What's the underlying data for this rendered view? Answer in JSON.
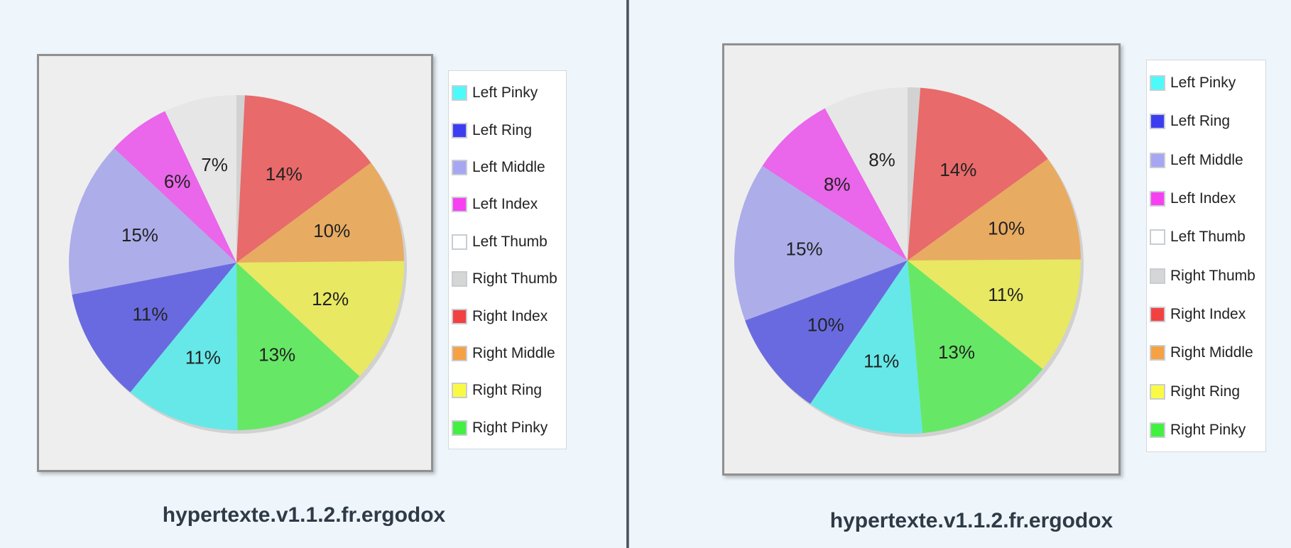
{
  "legend_entries": [
    {
      "label": "Left Pinky",
      "color": "#4dfafa"
    },
    {
      "label": "Left Ring",
      "color": "#3d3df0"
    },
    {
      "label": "Left Middle",
      "color": "#a6a6f2"
    },
    {
      "label": "Left Index",
      "color": "#f740f2"
    },
    {
      "label": "Left Thumb",
      "color": "#ffffff"
    },
    {
      "label": "Right Thumb",
      "color": "#d6d6d6"
    },
    {
      "label": "Right Index",
      "color": "#f24141"
    },
    {
      "label": "Right Middle",
      "color": "#f5a144"
    },
    {
      "label": "Right Ring",
      "color": "#fafa44"
    },
    {
      "label": "Right Pinky",
      "color": "#42f042"
    }
  ],
  "chart_data": [
    {
      "type": "pie",
      "title": "hypertexte.v1.1.2.fr.ergodox",
      "categories": [
        "Right Thumb",
        "Right Index",
        "Right Middle",
        "Right Ring",
        "Right Pinky",
        "Left Pinky",
        "Left Ring",
        "Left Middle",
        "Left Index",
        "Left Thumb"
      ],
      "values": [
        0.8,
        14,
        10,
        12,
        13,
        11,
        11,
        15,
        6,
        7
      ],
      "labels": [
        "",
        "14%",
        "10%",
        "12%",
        "13%",
        "11%",
        "11%",
        "15%",
        "6%",
        "7%"
      ],
      "colors": [
        "#d2d2d2",
        "#e86a6a",
        "#e8ab62",
        "#e8e862",
        "#66e866",
        "#66e8e8",
        "#6a6ae0",
        "#adadea",
        "#ea66ea",
        "#e6e6e6"
      ],
      "legend_placement": "right"
    },
    {
      "type": "pie",
      "title": "hypertexte.v1.1.2.fr.ergodox",
      "categories": [
        "Right Thumb",
        "Right Index",
        "Right Middle",
        "Right Ring",
        "Right Pinky",
        "Left Pinky",
        "Left Ring",
        "Left Middle",
        "Left Index",
        "Left Thumb"
      ],
      "values": [
        1.2,
        14,
        10,
        11,
        13,
        11,
        10,
        15,
        8,
        8
      ],
      "labels": [
        "",
        "14%",
        "10%",
        "11%",
        "13%",
        "11%",
        "10%",
        "15%",
        "8%",
        "8%"
      ],
      "colors": [
        "#d2d2d2",
        "#e86a6a",
        "#e8ab62",
        "#e8e862",
        "#66e866",
        "#66e8e8",
        "#6a6ae0",
        "#adadea",
        "#ea66ea",
        "#e6e6e6"
      ],
      "legend_placement": "right"
    }
  ]
}
